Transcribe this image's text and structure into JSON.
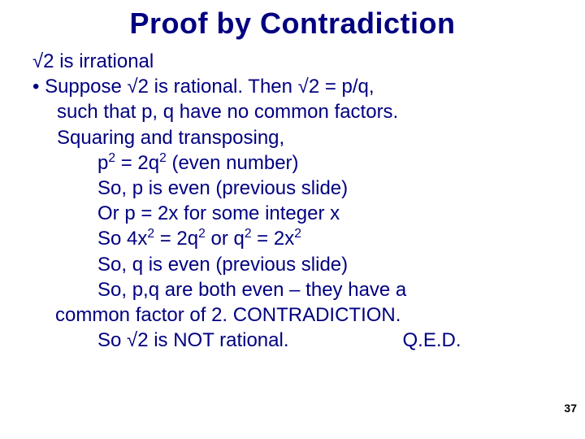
{
  "title": "Proof by Contradiction",
  "lines": {
    "l1": "√2 is irrational",
    "l2": "•  Suppose √2 is rational. Then √2 = p/q,",
    "l3": "such that p, q have no common factors.",
    "l4": "Squaring and transposing,",
    "l5a": "p",
    "l5b": " = 2q",
    "l5c": " (even number)",
    "l6": "So, p is even (previous slide)",
    "l7": "Or p = 2x for some integer x",
    "l8a": "So 4x",
    "l8b": " = 2q",
    "l8c": " or q",
    "l8d": " = 2x",
    "l9": "So, q is even (previous slide)",
    "l10": "So, p,q are both even – they have a",
    "l11": "common factor of 2. CONTRADICTION.",
    "l12": "So √2 is NOT rational.",
    "qed": "Q.E.D."
  },
  "sup2": "2",
  "pageNumber": "37",
  "style": {
    "title_color": "#000080",
    "text_color": "#000080",
    "background": "#ffffff",
    "title_fontsize": 36,
    "body_fontsize": 24,
    "pagenum_fontsize": 14,
    "pagenum_color": "#000000",
    "font_family": "Arial"
  }
}
